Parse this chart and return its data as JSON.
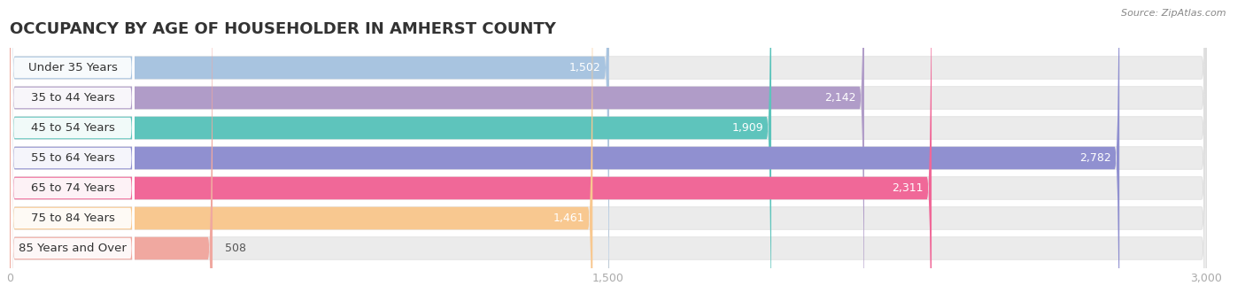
{
  "title": "OCCUPANCY BY AGE OF HOUSEHOLDER IN AMHERST COUNTY",
  "source": "Source: ZipAtlas.com",
  "categories": [
    "Under 35 Years",
    "35 to 44 Years",
    "45 to 54 Years",
    "55 to 64 Years",
    "65 to 74 Years",
    "75 to 84 Years",
    "85 Years and Over"
  ],
  "values": [
    1502,
    2142,
    1909,
    2782,
    2311,
    1461,
    508
  ],
  "bar_colors": [
    "#a8c4e0",
    "#b09cc8",
    "#5ec4bc",
    "#9090d0",
    "#f06898",
    "#f8c890",
    "#f0a8a0"
  ],
  "xlim_data": [
    0,
    3000
  ],
  "xticks": [
    0,
    1500,
    3000
  ],
  "background_color": "#ffffff",
  "bar_bg_color": "#ebebeb",
  "title_fontsize": 13,
  "label_fontsize": 9.5,
  "value_fontsize": 9
}
